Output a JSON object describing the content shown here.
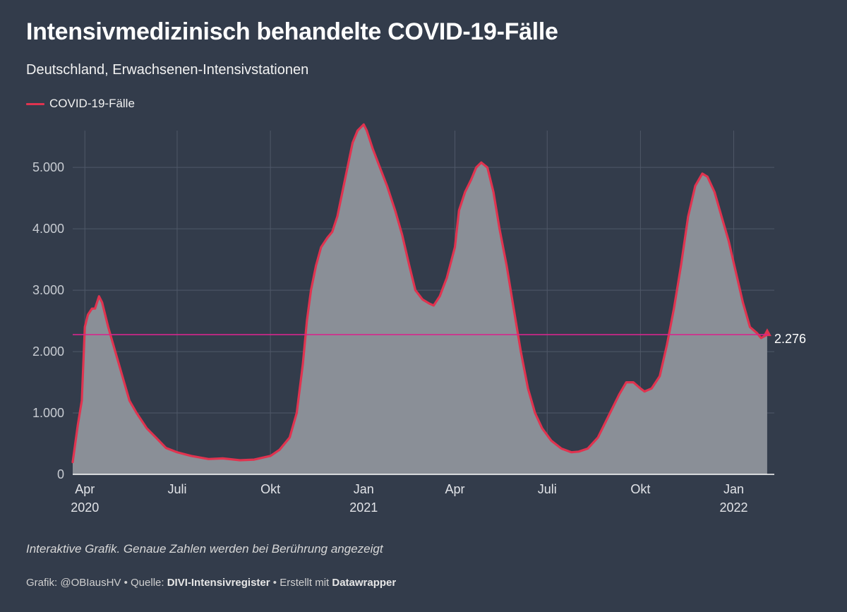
{
  "header": {
    "title": "Intensivmedizinisch behandelte COVID-19-Fälle",
    "subtitle": "Deutschland, Erwachsenen-Intensivstationen"
  },
  "legend": {
    "label": "COVID-19-Fälle"
  },
  "footer": {
    "note": "Interaktive Grafik. Genaue Zahlen werden bei Berührung angezeigt",
    "credit_prefix": "Grafik: @OBIausHV • Quelle: ",
    "source": "DIVI-Intensivregister",
    "created_with": " • Erstellt mit ",
    "tool": "Datawrapper"
  },
  "colors": {
    "background": "#333c4b",
    "line": "#e0334f",
    "area": "#8a8f97",
    "reference_line": "#d6268c",
    "grid": "#4f5868"
  },
  "chart_data": {
    "type": "area",
    "title": "Intensivmedizinisch behandelte COVID-19-Fälle",
    "subtitle": "Deutschland, Erwachsenen-Intensivstationen",
    "xlabel": "",
    "ylabel": "",
    "x_range": [
      "2020-03-20",
      "2022-02-10"
    ],
    "ylim": [
      0,
      5600
    ],
    "y_ticks": [
      0,
      1000,
      2000,
      3000,
      4000,
      5000
    ],
    "y_tick_labels": [
      "0",
      "1.000",
      "2.000",
      "3.000",
      "4.000",
      "5.000"
    ],
    "x_ticks": [
      {
        "date": "2020-04-01",
        "label": "Apr",
        "year": "2020"
      },
      {
        "date": "2020-07-01",
        "label": "Juli",
        "year": ""
      },
      {
        "date": "2020-10-01",
        "label": "Okt",
        "year": ""
      },
      {
        "date": "2021-01-01",
        "label": "Jan",
        "year": "2021"
      },
      {
        "date": "2021-04-01",
        "label": "Apr",
        "year": ""
      },
      {
        "date": "2021-07-01",
        "label": "Juli",
        "year": ""
      },
      {
        "date": "2021-10-01",
        "label": "Okt",
        "year": ""
      },
      {
        "date": "2022-01-01",
        "label": "Jan",
        "year": "2022"
      }
    ],
    "grid": true,
    "legend_position": "top-left",
    "reference_line": {
      "value": 2276,
      "label": "2.276"
    },
    "series": [
      {
        "name": "COVID-19-Fälle",
        "points": [
          [
            "2020-03-20",
            200
          ],
          [
            "2020-03-25",
            800
          ],
          [
            "2020-03-29",
            1200
          ],
          [
            "2020-04-01",
            2400
          ],
          [
            "2020-04-04",
            2600
          ],
          [
            "2020-04-08",
            2700
          ],
          [
            "2020-04-11",
            2700
          ],
          [
            "2020-04-15",
            2900
          ],
          [
            "2020-04-18",
            2800
          ],
          [
            "2020-04-24",
            2400
          ],
          [
            "2020-05-01",
            2000
          ],
          [
            "2020-05-08",
            1600
          ],
          [
            "2020-05-15",
            1200
          ],
          [
            "2020-05-22",
            1000
          ],
          [
            "2020-06-01",
            750
          ],
          [
            "2020-06-10",
            600
          ],
          [
            "2020-06-20",
            430
          ],
          [
            "2020-07-01",
            360
          ],
          [
            "2020-07-15",
            300
          ],
          [
            "2020-08-01",
            250
          ],
          [
            "2020-08-15",
            260
          ],
          [
            "2020-09-01",
            230
          ],
          [
            "2020-09-15",
            240
          ],
          [
            "2020-10-01",
            300
          ],
          [
            "2020-10-10",
            400
          ],
          [
            "2020-10-20",
            600
          ],
          [
            "2020-10-27",
            1000
          ],
          [
            "2020-11-02",
            1800
          ],
          [
            "2020-11-06",
            2500
          ],
          [
            "2020-11-10",
            3000
          ],
          [
            "2020-11-15",
            3400
          ],
          [
            "2020-11-20",
            3700
          ],
          [
            "2020-11-26",
            3850
          ],
          [
            "2020-12-01",
            3950
          ],
          [
            "2020-12-06",
            4200
          ],
          [
            "2020-12-11",
            4600
          ],
          [
            "2020-12-16",
            5000
          ],
          [
            "2020-12-21",
            5400
          ],
          [
            "2020-12-26",
            5600
          ],
          [
            "2021-01-01",
            5700
          ],
          [
            "2021-01-04",
            5600
          ],
          [
            "2021-01-10",
            5300
          ],
          [
            "2021-01-17",
            5000
          ],
          [
            "2021-01-24",
            4700
          ],
          [
            "2021-02-01",
            4300
          ],
          [
            "2021-02-08",
            3900
          ],
          [
            "2021-02-15",
            3400
          ],
          [
            "2021-02-21",
            3000
          ],
          [
            "2021-02-28",
            2850
          ],
          [
            "2021-03-07",
            2780
          ],
          [
            "2021-03-11",
            2750
          ],
          [
            "2021-03-17",
            2900
          ],
          [
            "2021-03-24",
            3200
          ],
          [
            "2021-04-01",
            3700
          ],
          [
            "2021-04-05",
            4300
          ],
          [
            "2021-04-11",
            4600
          ],
          [
            "2021-04-17",
            4800
          ],
          [
            "2021-04-22",
            5000
          ],
          [
            "2021-04-27",
            5080
          ],
          [
            "2021-05-03",
            5000
          ],
          [
            "2021-05-09",
            4600
          ],
          [
            "2021-05-15",
            4000
          ],
          [
            "2021-05-22",
            3400
          ],
          [
            "2021-05-29",
            2700
          ],
          [
            "2021-06-05",
            2000
          ],
          [
            "2021-06-12",
            1400
          ],
          [
            "2021-06-19",
            1000
          ],
          [
            "2021-06-26",
            750
          ],
          [
            "2021-07-05",
            550
          ],
          [
            "2021-07-15",
            420
          ],
          [
            "2021-07-25",
            360
          ],
          [
            "2021-08-01",
            370
          ],
          [
            "2021-08-10",
            420
          ],
          [
            "2021-08-20",
            600
          ],
          [
            "2021-09-01",
            1000
          ],
          [
            "2021-09-10",
            1300
          ],
          [
            "2021-09-17",
            1500
          ],
          [
            "2021-09-24",
            1500
          ],
          [
            "2021-10-01",
            1400
          ],
          [
            "2021-10-05",
            1350
          ],
          [
            "2021-10-12",
            1400
          ],
          [
            "2021-10-20",
            1600
          ],
          [
            "2021-10-27",
            2100
          ],
          [
            "2021-11-03",
            2700
          ],
          [
            "2021-11-10",
            3400
          ],
          [
            "2021-11-17",
            4200
          ],
          [
            "2021-11-24",
            4700
          ],
          [
            "2021-12-01",
            4900
          ],
          [
            "2021-12-06",
            4850
          ],
          [
            "2021-12-13",
            4600
          ],
          [
            "2021-12-20",
            4200
          ],
          [
            "2021-12-27",
            3800
          ],
          [
            "2022-01-03",
            3300
          ],
          [
            "2022-01-10",
            2800
          ],
          [
            "2022-01-17",
            2400
          ],
          [
            "2022-01-24",
            2300
          ],
          [
            "2022-01-28",
            2220
          ],
          [
            "2022-02-03",
            2276
          ]
        ]
      }
    ]
  }
}
